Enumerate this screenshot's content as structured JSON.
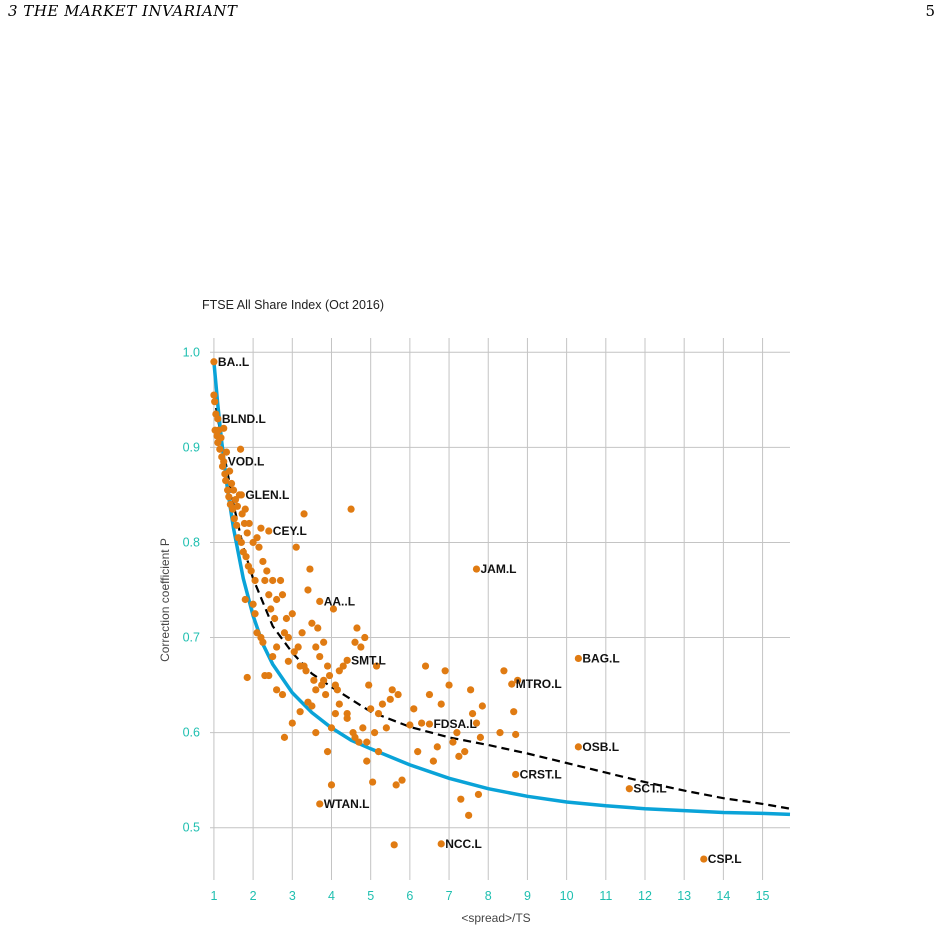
{
  "header": {
    "section": "3   THE MARKET INVARIANT",
    "page_number": "5"
  },
  "chart_data": {
    "type": "scatter",
    "title": "FTSE All Share Index (Oct 2016)",
    "xlabel": "<spread>/TS",
    "ylabel": "Correction coefficient P",
    "xlim": [
      0.9,
      15.7
    ],
    "ylim": [
      0.445,
      1.015
    ],
    "xticks": [
      1,
      2,
      3,
      4,
      5,
      6,
      7,
      8,
      9,
      10,
      11,
      12,
      13,
      14,
      15
    ],
    "yticks": [
      0.5,
      0.6,
      0.7,
      0.8,
      0.9,
      1.0
    ],
    "ytick_labels": [
      "0.5",
      "0.6",
      "0.7",
      "0.8",
      "0.9",
      "1.0"
    ],
    "grid": true,
    "colors": {
      "points": "#e07b12",
      "solid_curve": "#0aa3d8",
      "dashed_curve": "#000000",
      "ticks": "#1fbfb0",
      "grid": "#c4c4c4"
    },
    "solid_curve": {
      "style": "solid",
      "x": [
        1.0,
        1.1,
        1.2,
        1.35,
        1.5,
        1.75,
        2.0,
        2.25,
        2.5,
        3.0,
        3.5,
        4.0,
        4.5,
        5.0,
        6.0,
        7.0,
        8.0,
        9.0,
        10.0,
        11.0,
        12.0,
        13.0,
        14.0,
        15.0,
        15.7
      ],
      "y": [
        0.99,
        0.945,
        0.905,
        0.855,
        0.815,
        0.762,
        0.723,
        0.693,
        0.672,
        0.642,
        0.621,
        0.605,
        0.592,
        0.583,
        0.566,
        0.552,
        0.541,
        0.533,
        0.527,
        0.523,
        0.52,
        0.518,
        0.516,
        0.515,
        0.514
      ]
    },
    "dashed_curve": {
      "style": "dashed",
      "x": [
        1.0,
        1.25,
        1.5,
        1.75,
        2.0,
        2.5,
        3.0,
        3.5,
        4.0,
        5.0,
        6.0,
        7.0,
        8.0,
        9.0,
        10.0,
        11.0,
        12.0,
        13.0,
        14.0,
        15.0,
        15.7
      ],
      "y": [
        0.955,
        0.895,
        0.84,
        0.795,
        0.762,
        0.712,
        0.684,
        0.662,
        0.648,
        0.622,
        0.606,
        0.595,
        0.587,
        0.578,
        0.568,
        0.558,
        0.548,
        0.539,
        0.531,
        0.525,
        0.52
      ]
    },
    "labeled_points": [
      {
        "label": "BA..L",
        "x": 1.0,
        "y": 0.99
      },
      {
        "label": "BLND.L",
        "x": 1.1,
        "y": 0.93
      },
      {
        "label": "VOD.L",
        "x": 1.25,
        "y": 0.885
      },
      {
        "label": "GLEN.L",
        "x": 1.7,
        "y": 0.85
      },
      {
        "label": "CEY.L",
        "x": 2.4,
        "y": 0.812
      },
      {
        "label": "JAM.L",
        "x": 7.7,
        "y": 0.772
      },
      {
        "label": "AA..L",
        "x": 3.7,
        "y": 0.738
      },
      {
        "label": "BAG.L",
        "x": 10.3,
        "y": 0.678
      },
      {
        "label": "SMT.L",
        "x": 4.4,
        "y": 0.676
      },
      {
        "label": "MTRO.L",
        "x": 8.6,
        "y": 0.651
      },
      {
        "label": "FDSA.L",
        "x": 6.5,
        "y": 0.609
      },
      {
        "label": "OSB.L",
        "x": 10.3,
        "y": 0.585
      },
      {
        "label": "CRST.L",
        "x": 8.7,
        "y": 0.556
      },
      {
        "label": "SCT.L",
        "x": 11.6,
        "y": 0.541
      },
      {
        "label": "WTAN.L",
        "x": 3.7,
        "y": 0.525
      },
      {
        "label": "NCC.L",
        "x": 6.8,
        "y": 0.483
      },
      {
        "label": "CSP.L",
        "x": 13.5,
        "y": 0.467
      }
    ],
    "points": [
      [
        1.0,
        0.955
      ],
      [
        1.02,
        0.948
      ],
      [
        1.05,
        0.935
      ],
      [
        1.03,
        0.918
      ],
      [
        1.08,
        0.912
      ],
      [
        1.1,
        0.905
      ],
      [
        1.12,
        0.918
      ],
      [
        1.15,
        0.898
      ],
      [
        1.18,
        0.91
      ],
      [
        1.2,
        0.89
      ],
      [
        1.22,
        0.88
      ],
      [
        1.25,
        0.92
      ],
      [
        1.28,
        0.872
      ],
      [
        1.3,
        0.865
      ],
      [
        1.32,
        0.895
      ],
      [
        1.35,
        0.855
      ],
      [
        1.38,
        0.848
      ],
      [
        1.4,
        0.875
      ],
      [
        1.42,
        0.84
      ],
      [
        1.45,
        0.862
      ],
      [
        1.48,
        0.835
      ],
      [
        1.5,
        0.855
      ],
      [
        1.52,
        0.825
      ],
      [
        1.55,
        0.845
      ],
      [
        1.58,
        0.818
      ],
      [
        1.6,
        0.838
      ],
      [
        1.62,
        0.805
      ],
      [
        1.65,
        0.85
      ],
      [
        1.68,
        0.898
      ],
      [
        1.7,
        0.8
      ],
      [
        1.72,
        0.83
      ],
      [
        1.75,
        0.79
      ],
      [
        1.78,
        0.82
      ],
      [
        1.8,
        0.835
      ],
      [
        1.82,
        0.785
      ],
      [
        1.85,
        0.81
      ],
      [
        1.88,
        0.775
      ],
      [
        1.9,
        0.82
      ],
      [
        1.95,
        0.77
      ],
      [
        2.0,
        0.8
      ],
      [
        2.05,
        0.76
      ],
      [
        2.1,
        0.805
      ],
      [
        2.15,
        0.795
      ],
      [
        2.2,
        0.815
      ],
      [
        2.25,
        0.78
      ],
      [
        2.3,
        0.76
      ],
      [
        2.35,
        0.77
      ],
      [
        2.4,
        0.745
      ],
      [
        2.45,
        0.73
      ],
      [
        2.5,
        0.76
      ],
      [
        2.55,
        0.72
      ],
      [
        2.6,
        0.74
      ],
      [
        2.7,
        0.76
      ],
      [
        2.75,
        0.745
      ],
      [
        2.8,
        0.705
      ],
      [
        2.85,
        0.72
      ],
      [
        2.9,
        0.7
      ],
      [
        3.0,
        0.725
      ],
      [
        3.05,
        0.685
      ],
      [
        3.1,
        0.795
      ],
      [
        3.15,
        0.69
      ],
      [
        3.2,
        0.67
      ],
      [
        3.25,
        0.705
      ],
      [
        3.3,
        0.83
      ],
      [
        3.35,
        0.665
      ],
      [
        3.4,
        0.75
      ],
      [
        3.45,
        0.772
      ],
      [
        3.5,
        0.715
      ],
      [
        3.55,
        0.655
      ],
      [
        3.6,
        0.69
      ],
      [
        3.65,
        0.71
      ],
      [
        3.7,
        0.68
      ],
      [
        3.75,
        0.65
      ],
      [
        3.8,
        0.695
      ],
      [
        3.85,
        0.64
      ],
      [
        3.9,
        0.67
      ],
      [
        3.95,
        0.66
      ],
      [
        4.0,
        0.545
      ],
      [
        4.05,
        0.73
      ],
      [
        4.1,
        0.65
      ],
      [
        4.15,
        0.645
      ],
      [
        4.2,
        0.63
      ],
      [
        4.3,
        0.67
      ],
      [
        4.4,
        0.62
      ],
      [
        4.5,
        0.835
      ],
      [
        4.55,
        0.6
      ],
      [
        4.6,
        0.695
      ],
      [
        4.65,
        0.71
      ],
      [
        4.7,
        0.59
      ],
      [
        4.75,
        0.69
      ],
      [
        4.8,
        0.605
      ],
      [
        4.85,
        0.7
      ],
      [
        4.9,
        0.57
      ],
      [
        4.95,
        0.65
      ],
      [
        5.0,
        0.625
      ],
      [
        5.05,
        0.548
      ],
      [
        5.1,
        0.6
      ],
      [
        5.15,
        0.67
      ],
      [
        5.2,
        0.62
      ],
      [
        5.3,
        0.63
      ],
      [
        5.4,
        0.605
      ],
      [
        5.5,
        0.635
      ],
      [
        5.55,
        0.645
      ],
      [
        5.6,
        0.482
      ],
      [
        5.65,
        0.545
      ],
      [
        5.7,
        0.64
      ],
      [
        5.8,
        0.55
      ],
      [
        6.0,
        0.608
      ],
      [
        6.1,
        0.625
      ],
      [
        6.2,
        0.58
      ],
      [
        6.3,
        0.61
      ],
      [
        6.4,
        0.67
      ],
      [
        6.5,
        0.64
      ],
      [
        6.6,
        0.57
      ],
      [
        6.7,
        0.585
      ],
      [
        6.8,
        0.63
      ],
      [
        6.9,
        0.665
      ],
      [
        7.0,
        0.65
      ],
      [
        7.1,
        0.59
      ],
      [
        7.2,
        0.6
      ],
      [
        7.25,
        0.575
      ],
      [
        7.3,
        0.53
      ],
      [
        7.4,
        0.58
      ],
      [
        7.5,
        0.513
      ],
      [
        7.55,
        0.645
      ],
      [
        7.6,
        0.62
      ],
      [
        7.7,
        0.61
      ],
      [
        7.75,
        0.535
      ],
      [
        7.8,
        0.595
      ],
      [
        7.85,
        0.628
      ],
      [
        8.3,
        0.6
      ],
      [
        8.4,
        0.665
      ],
      [
        8.65,
        0.622
      ],
      [
        8.7,
        0.598
      ],
      [
        8.75,
        0.655
      ],
      [
        1.8,
        0.74
      ],
      [
        2.0,
        0.735
      ],
      [
        2.05,
        0.725
      ],
      [
        2.2,
        0.7
      ],
      [
        2.3,
        0.66
      ],
      [
        2.4,
        0.66
      ],
      [
        2.6,
        0.645
      ],
      [
        2.75,
        0.64
      ],
      [
        2.9,
        0.675
      ],
      [
        3.0,
        0.61
      ],
      [
        3.2,
        0.622
      ],
      [
        3.4,
        0.632
      ],
      [
        3.6,
        0.645
      ],
      [
        3.8,
        0.655
      ],
      [
        4.0,
        0.605
      ],
      [
        4.2,
        0.665
      ],
      [
        4.4,
        0.615
      ],
      [
        4.6,
        0.595
      ],
      [
        4.9,
        0.59
      ],
      [
        5.2,
        0.58
      ],
      [
        2.8,
        0.595
      ],
      [
        3.3,
        0.67
      ],
      [
        3.5,
        0.628
      ],
      [
        3.6,
        0.6
      ],
      [
        1.85,
        0.658
      ],
      [
        2.1,
        0.705
      ],
      [
        2.6,
        0.69
      ],
      [
        2.5,
        0.68
      ],
      [
        2.25,
        0.695
      ],
      [
        3.9,
        0.58
      ],
      [
        4.1,
        0.62
      ]
    ]
  }
}
